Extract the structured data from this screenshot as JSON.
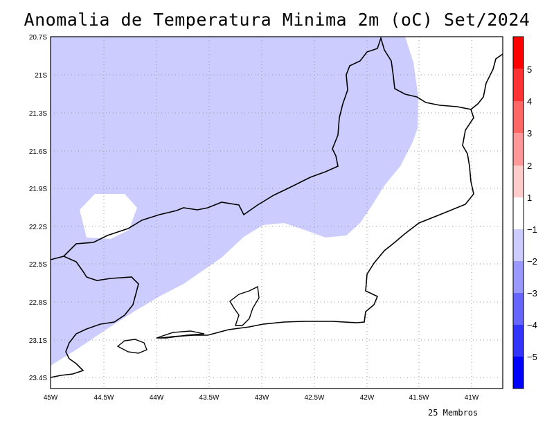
{
  "map": {
    "title": "Anomalia de Temperatura Minima 2m (oC) Set/2024",
    "footnote": "25 Membros",
    "lat_labels": [
      "20.7S",
      "21S",
      "21.3S",
      "21.6S",
      "21.9S",
      "22.2S",
      "22.5S",
      "22.8S",
      "23.1S",
      "23.4S"
    ],
    "lon_labels": [
      "45W",
      "44.5W",
      "44W",
      "43.5W",
      "43W",
      "42.5W",
      "42W",
      "41.5W",
      "41W"
    ],
    "colorbar": {
      "labels": [
        "5",
        "4",
        "3",
        "2",
        "1",
        "−1",
        "−2",
        "−3",
        "−4",
        "−5"
      ],
      "colors": [
        "#ff0000",
        "#ff3333",
        "#ff6666",
        "#ff9999",
        "#ffcccc",
        "#ffffff",
        "#ccccff",
        "#9999ff",
        "#6666ff",
        "#3333ff",
        "#0000ff"
      ]
    },
    "shading_color": "#ccccff"
  }
}
